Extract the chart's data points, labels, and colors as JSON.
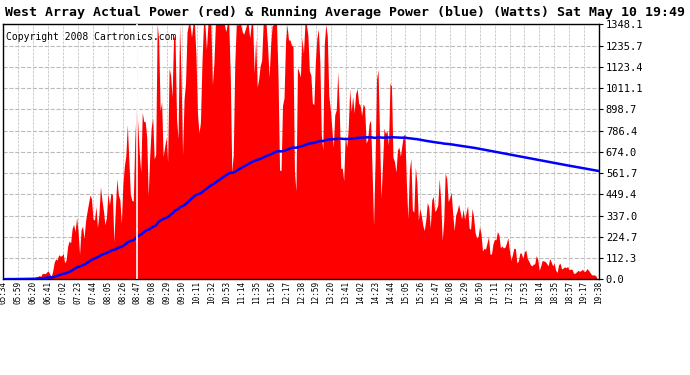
{
  "title": "West Array Actual Power (red) & Running Average Power (blue) (Watts) Sat May 10 19:49",
  "copyright": "Copyright 2008 Cartronics.com",
  "ylabel_right_values": [
    0.0,
    112.3,
    224.7,
    337.0,
    449.4,
    561.7,
    674.0,
    786.4,
    898.7,
    1011.1,
    1123.4,
    1235.7,
    1348.1
  ],
  "ymax": 1348.1,
  "bg_color": "#ffffff",
  "plot_bg_color": "#ffffff",
  "grid_color": "#bbbbbb",
  "actual_color": "#ff0000",
  "avg_color": "#0000ff",
  "x_tick_labels": [
    "05:34",
    "05:59",
    "06:20",
    "06:41",
    "07:02",
    "07:23",
    "07:44",
    "08:05",
    "08:26",
    "08:47",
    "09:08",
    "09:29",
    "09:50",
    "10:11",
    "10:32",
    "10:53",
    "11:14",
    "11:35",
    "11:56",
    "12:17",
    "12:38",
    "12:59",
    "13:20",
    "13:41",
    "14:02",
    "14:23",
    "14:44",
    "15:05",
    "15:26",
    "15:47",
    "16:08",
    "16:29",
    "16:50",
    "17:11",
    "17:32",
    "17:53",
    "18:14",
    "18:35",
    "18:57",
    "19:17",
    "19:38"
  ],
  "title_fontsize": 9.5,
  "copyright_fontsize": 7,
  "white_vline_tick_idx": 9
}
